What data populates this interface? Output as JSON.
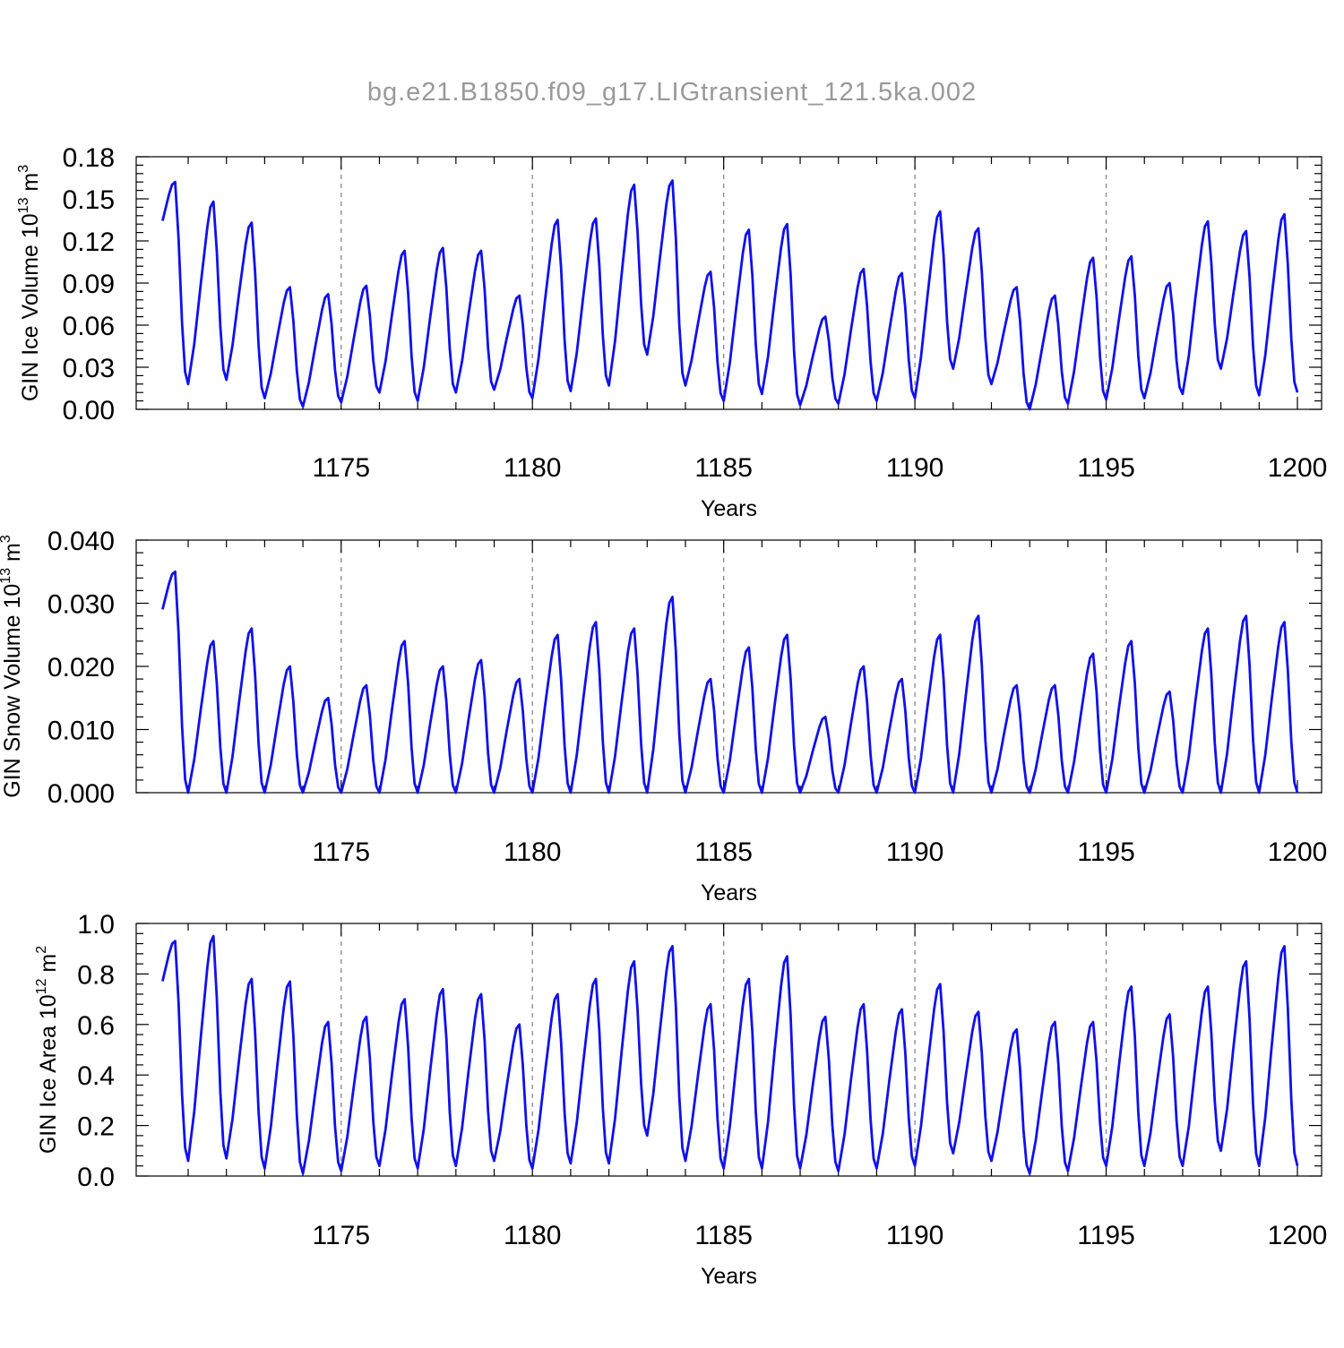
{
  "title": "bg.e21.B1850.f09_g17.LIGtransient_121.5ka.002",
  "colors": {
    "line": "#1010ee",
    "axis": "#000000",
    "grid": "#888888",
    "title": "#999999"
  },
  "chart_data": [
    {
      "type": "line",
      "name": "ice-volume",
      "xlabel": "Years",
      "ylabel": {
        "main": "GIN Ice Volume 10",
        "exp": "13",
        "unit": "m",
        "unit_exp": "3"
      },
      "xlim": [
        1170.25,
        1200.0
      ],
      "ylim": [
        0.0,
        0.18
      ],
      "xticks": [
        1175,
        1180,
        1185,
        1190,
        1195,
        1200
      ],
      "xtick_labels": [
        "1175",
        "1180",
        "1185",
        "1190",
        "1195",
        "1200"
      ],
      "yticks": [
        0.0,
        0.03,
        0.06,
        0.09,
        0.12,
        0.15,
        0.18
      ],
      "ytick_labels": [
        "0.00",
        "0.03",
        "0.06",
        "0.09",
        "0.12",
        "0.15",
        "0.18"
      ],
      "grid_x": true,
      "peaks": [
        0.162,
        0.148,
        0.133,
        0.087,
        0.082,
        0.088,
        0.113,
        0.115,
        0.113,
        0.081,
        0.135,
        0.136,
        0.16,
        0.163,
        0.098,
        0.128,
        0.132,
        0.066,
        0.1,
        0.097,
        0.141,
        0.129,
        0.087,
        0.081,
        0.108,
        0.109,
        0.09,
        0.134,
        0.127,
        0.139,
        0.065
      ],
      "troughs": [
        0.018,
        0.021,
        0.008,
        0.002,
        0.005,
        0.012,
        0.006,
        0.012,
        0.014,
        0.008,
        0.013,
        0.017,
        0.039,
        0.017,
        0.006,
        0.011,
        0.003,
        0.004,
        0.006,
        0.008,
        0.029,
        0.018,
        0.0,
        0.004,
        0.007,
        0.008,
        0.011,
        0.029,
        0.01,
        0.012
      ]
    },
    {
      "type": "line",
      "name": "snow-volume",
      "xlabel": "Years",
      "ylabel": {
        "main": "GIN Snow Volume 10",
        "exp": "13",
        "unit": "m",
        "unit_exp": "3"
      },
      "xlim": [
        1170.25,
        1200.0
      ],
      "ylim": [
        0.0,
        0.04
      ],
      "xticks": [
        1175,
        1180,
        1185,
        1190,
        1195,
        1200
      ],
      "xtick_labels": [
        "1175",
        "1180",
        "1185",
        "1190",
        "1195",
        "1200"
      ],
      "yticks": [
        0.0,
        0.01,
        0.02,
        0.03,
        0.04
      ],
      "ytick_labels": [
        "0.000",
        "0.010",
        "0.020",
        "0.030",
        "0.040"
      ],
      "grid_x": true,
      "peaks": [
        0.035,
        0.024,
        0.026,
        0.02,
        0.015,
        0.017,
        0.024,
        0.02,
        0.021,
        0.018,
        0.025,
        0.027,
        0.026,
        0.031,
        0.018,
        0.023,
        0.025,
        0.012,
        0.02,
        0.018,
        0.025,
        0.028,
        0.017,
        0.017,
        0.022,
        0.024,
        0.016,
        0.026,
        0.028,
        0.027,
        0.009
      ],
      "troughs": [
        0.0,
        0.0,
        0.0,
        0.0,
        0.0,
        0.0,
        0.0,
        0.0,
        0.0,
        0.0,
        0.0,
        0.0,
        0.0,
        0.0,
        0.0,
        0.0,
        0.0,
        0.0,
        0.0,
        0.0,
        0.0,
        0.0,
        0.0,
        0.0,
        0.0,
        0.0,
        0.0,
        0.0,
        0.0,
        0.0
      ]
    },
    {
      "type": "line",
      "name": "ice-area",
      "xlabel": "Years",
      "ylabel": {
        "main": "GIN Ice Area 10",
        "exp": "12",
        "unit": "m",
        "unit_exp": "2"
      },
      "xlim": [
        1170.25,
        1200.0
      ],
      "ylim": [
        0.0,
        1.0
      ],
      "xticks": [
        1175,
        1180,
        1185,
        1190,
        1195,
        1200
      ],
      "xtick_labels": [
        "1175",
        "1180",
        "1185",
        "1190",
        "1195",
        "1200"
      ],
      "yticks": [
        0.0,
        0.2,
        0.4,
        0.6,
        0.8,
        1.0
      ],
      "ytick_labels": [
        "0.0",
        "0.2",
        "0.4",
        "0.6",
        "0.8",
        "1.0"
      ],
      "grid_x": true,
      "peaks": [
        0.93,
        0.95,
        0.78,
        0.77,
        0.61,
        0.63,
        0.7,
        0.74,
        0.72,
        0.6,
        0.72,
        0.78,
        0.85,
        0.91,
        0.68,
        0.78,
        0.87,
        0.63,
        0.68,
        0.66,
        0.76,
        0.65,
        0.58,
        0.61,
        0.61,
        0.75,
        0.64,
        0.75,
        0.85,
        0.91,
        0.59
      ],
      "troughs": [
        0.06,
        0.07,
        0.03,
        0.01,
        0.02,
        0.04,
        0.03,
        0.04,
        0.06,
        0.03,
        0.05,
        0.05,
        0.16,
        0.06,
        0.03,
        0.03,
        0.03,
        0.02,
        0.03,
        0.04,
        0.09,
        0.06,
        0.01,
        0.02,
        0.04,
        0.04,
        0.04,
        0.1,
        0.04,
        0.04
      ]
    }
  ]
}
